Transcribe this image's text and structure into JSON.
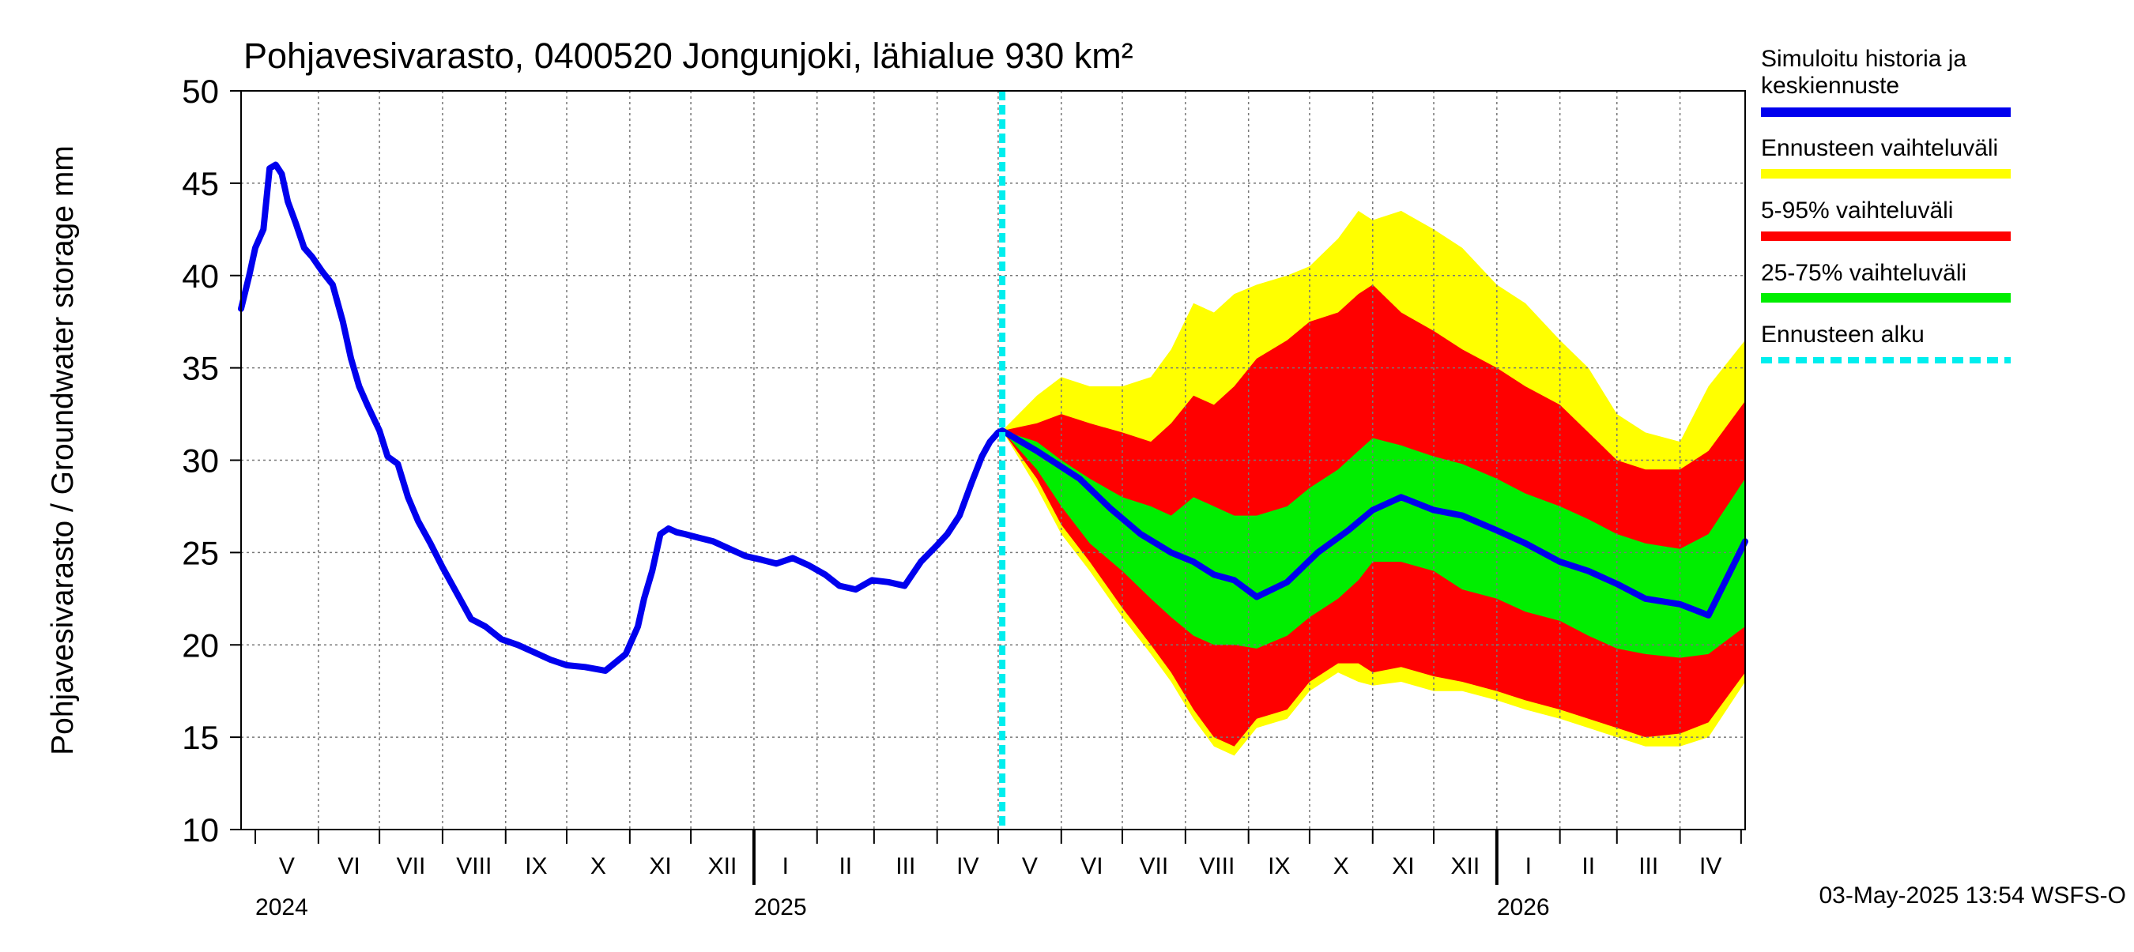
{
  "chart_data": {
    "type": "area",
    "title": "Pohjavesivarasto, 0400520 Jongunjoki, lähialue 930 km²",
    "ylabel": "Pohjavesivarasto / Groundwater storage   mm",
    "ylim": [
      10,
      50
    ],
    "yticks": [
      10,
      15,
      20,
      25,
      30,
      35,
      40,
      45,
      50
    ],
    "xlim": [
      "2024-04-24",
      "2026-05-03"
    ],
    "forecast_start": "2025-05-03",
    "grid": true,
    "legend_position": "right",
    "months": [
      {
        "label": "V",
        "start": "2024-05-01"
      },
      {
        "label": "VI",
        "start": "2024-06-01"
      },
      {
        "label": "VII",
        "start": "2024-07-01"
      },
      {
        "label": "VIII",
        "start": "2024-08-01"
      },
      {
        "label": "IX",
        "start": "2024-09-01"
      },
      {
        "label": "X",
        "start": "2024-10-01"
      },
      {
        "label": "XI",
        "start": "2024-11-01"
      },
      {
        "label": "XII",
        "start": "2024-12-01"
      },
      {
        "label": "I",
        "start": "2025-01-01"
      },
      {
        "label": "II",
        "start": "2025-02-01"
      },
      {
        "label": "III",
        "start": "2025-03-01"
      },
      {
        "label": "IV",
        "start": "2025-04-01"
      },
      {
        "label": "V",
        "start": "2025-05-01"
      },
      {
        "label": "VI",
        "start": "2025-06-01"
      },
      {
        "label": "VII",
        "start": "2025-07-01"
      },
      {
        "label": "VIII",
        "start": "2025-08-01"
      },
      {
        "label": "IX",
        "start": "2025-09-01"
      },
      {
        "label": "X",
        "start": "2025-10-01"
      },
      {
        "label": "XI",
        "start": "2025-11-01"
      },
      {
        "label": "XII",
        "start": "2025-12-01"
      },
      {
        "label": "I",
        "start": "2026-01-01"
      },
      {
        "label": "II",
        "start": "2026-02-01"
      },
      {
        "label": "III",
        "start": "2026-03-01"
      },
      {
        "label": "IV",
        "start": "2026-04-01"
      }
    ],
    "month_ends": "2026-05-01",
    "years": [
      {
        "label": "2024",
        "start": "2024-05-01"
      },
      {
        "label": "2025",
        "start": "2025-01-01"
      },
      {
        "label": "2026",
        "start": "2026-01-01"
      }
    ],
    "series": [
      {
        "name": "Simuloitu historia ja keskiennuste",
        "color": "#0000ee",
        "x": [
          "2024-04-24",
          "2024-04-28",
          "2024-05-01",
          "2024-05-05",
          "2024-05-08",
          "2024-05-11",
          "2024-05-14",
          "2024-05-17",
          "2024-05-21",
          "2024-05-25",
          "2024-05-29",
          "2024-06-03",
          "2024-06-08",
          "2024-06-13",
          "2024-06-17",
          "2024-06-21",
          "2024-06-25",
          "2024-07-01",
          "2024-07-05",
          "2024-07-10",
          "2024-07-15",
          "2024-07-20",
          "2024-07-26",
          "2024-08-01",
          "2024-08-08",
          "2024-08-15",
          "2024-08-22",
          "2024-08-30",
          "2024-09-07",
          "2024-09-15",
          "2024-09-23",
          "2024-10-01",
          "2024-10-10",
          "2024-10-20",
          "2024-10-30",
          "2024-11-05",
          "2024-11-08",
          "2024-11-12",
          "2024-11-16",
          "2024-11-20",
          "2024-11-24",
          "2024-11-28",
          "2024-12-05",
          "2024-12-12",
          "2024-12-20",
          "2024-12-28",
          "2025-01-05",
          "2025-01-12",
          "2025-01-20",
          "2025-01-28",
          "2025-02-05",
          "2025-02-12",
          "2025-02-20",
          "2025-02-28",
          "2025-03-08",
          "2025-03-16",
          "2025-03-24",
          "2025-04-01",
          "2025-04-06",
          "2025-04-12",
          "2025-04-18",
          "2025-04-23",
          "2025-04-27",
          "2025-05-01",
          "2025-05-03",
          "2025-05-20",
          "2025-06-10",
          "2025-06-25",
          "2025-07-10",
          "2025-07-25",
          "2025-08-05",
          "2025-08-15",
          "2025-08-25",
          "2025-09-05",
          "2025-09-20",
          "2025-10-05",
          "2025-10-20",
          "2025-11-01",
          "2025-11-15",
          "2025-12-01",
          "2025-12-15",
          "2026-01-01",
          "2026-01-15",
          "2026-02-01",
          "2026-02-15",
          "2026-03-01",
          "2026-03-15",
          "2026-04-01",
          "2026-04-15",
          "2026-05-03"
        ],
        "y": [
          38.2,
          40.0,
          41.5,
          42.5,
          45.8,
          46.0,
          45.5,
          44.0,
          42.8,
          41.5,
          41.0,
          40.2,
          39.5,
          37.5,
          35.5,
          34.0,
          33.0,
          31.6,
          30.2,
          29.8,
          28.0,
          26.7,
          25.5,
          24.2,
          22.8,
          21.4,
          21.0,
          20.3,
          20.0,
          19.6,
          19.2,
          18.9,
          18.8,
          18.6,
          19.5,
          21.0,
          22.5,
          24.0,
          26.0,
          26.3,
          26.1,
          26.0,
          25.8,
          25.6,
          25.2,
          24.8,
          24.6,
          24.4,
          24.7,
          24.3,
          23.8,
          23.2,
          23.0,
          23.5,
          23.4,
          23.2,
          24.5,
          25.4,
          26.0,
          27.0,
          28.8,
          30.2,
          31.0,
          31.5,
          31.6,
          30.5,
          29.0,
          27.4,
          26.0,
          25.0,
          24.5,
          23.8,
          23.5,
          22.6,
          23.4,
          25.0,
          26.2,
          27.3,
          28.0,
          27.3,
          27.0,
          26.2,
          25.5,
          24.5,
          24.0,
          23.3,
          22.5,
          22.2,
          21.6,
          25.6
        ]
      },
      {
        "name": "Ennusteen vaihteluväli",
        "color": "#ffff00",
        "x": [
          "2025-05-03",
          "2025-05-20",
          "2025-06-01",
          "2025-06-15",
          "2025-07-01",
          "2025-07-15",
          "2025-07-25",
          "2025-08-05",
          "2025-08-15",
          "2025-08-25",
          "2025-09-05",
          "2025-09-20",
          "2025-10-01",
          "2025-10-15",
          "2025-10-25",
          "2025-11-01",
          "2025-11-15",
          "2025-12-01",
          "2025-12-15",
          "2026-01-01",
          "2026-01-15",
          "2026-02-01",
          "2026-02-15",
          "2026-03-01",
          "2026-03-15",
          "2026-04-01",
          "2026-04-15",
          "2026-05-03"
        ],
        "lower": [
          31.6,
          28.5,
          26.0,
          24.0,
          21.5,
          19.5,
          18.0,
          16.0,
          14.5,
          14.0,
          15.5,
          16.0,
          17.5,
          18.5,
          18.0,
          17.8,
          18.0,
          17.5,
          17.5,
          17.0,
          16.5,
          16.0,
          15.5,
          15.0,
          14.5,
          14.5,
          15.0,
          18.0
        ],
        "upper": [
          31.6,
          33.5,
          34.5,
          34.0,
          34.0,
          34.5,
          36.0,
          38.5,
          38.0,
          39.0,
          39.5,
          40.0,
          40.5,
          42.0,
          43.5,
          43.0,
          43.5,
          42.5,
          41.5,
          39.5,
          38.5,
          36.5,
          35.0,
          32.5,
          31.5,
          31.0,
          34.0,
          36.5
        ]
      },
      {
        "name": "5-95% vaihteluväli",
        "color": "#ff0000",
        "x": [
          "2025-05-03",
          "2025-05-20",
          "2025-06-01",
          "2025-06-15",
          "2025-07-01",
          "2025-07-15",
          "2025-07-25",
          "2025-08-05",
          "2025-08-15",
          "2025-08-25",
          "2025-09-05",
          "2025-09-20",
          "2025-10-01",
          "2025-10-15",
          "2025-10-25",
          "2025-11-01",
          "2025-11-15",
          "2025-12-01",
          "2025-12-15",
          "2026-01-01",
          "2026-01-15",
          "2026-02-01",
          "2026-02-15",
          "2026-03-01",
          "2026-03-15",
          "2026-04-01",
          "2026-04-15",
          "2026-05-03"
        ],
        "lower": [
          31.6,
          29.0,
          26.5,
          24.5,
          22.0,
          20.0,
          18.5,
          16.5,
          15.0,
          14.5,
          16.0,
          16.5,
          18.0,
          19.0,
          19.0,
          18.5,
          18.8,
          18.3,
          18.0,
          17.5,
          17.0,
          16.5,
          16.0,
          15.5,
          15.0,
          15.2,
          15.8,
          18.5
        ],
        "upper": [
          31.6,
          32.0,
          32.5,
          32.0,
          31.5,
          31.0,
          32.0,
          33.5,
          33.0,
          34.0,
          35.5,
          36.5,
          37.5,
          38.0,
          39.0,
          39.5,
          38.0,
          37.0,
          36.0,
          35.0,
          34.0,
          33.0,
          31.5,
          30.0,
          29.5,
          29.5,
          30.5,
          33.2
        ]
      },
      {
        "name": "25-75% vaihteluväli",
        "color": "#00ee00",
        "x": [
          "2025-05-03",
          "2025-05-20",
          "2025-06-01",
          "2025-06-15",
          "2025-07-01",
          "2025-07-15",
          "2025-07-25",
          "2025-08-05",
          "2025-08-15",
          "2025-08-25",
          "2025-09-05",
          "2025-09-20",
          "2025-10-01",
          "2025-10-15",
          "2025-10-25",
          "2025-11-01",
          "2025-11-15",
          "2025-12-01",
          "2025-12-15",
          "2026-01-01",
          "2026-01-15",
          "2026-02-01",
          "2026-02-15",
          "2026-03-01",
          "2026-03-15",
          "2026-04-01",
          "2026-04-15",
          "2026-05-03"
        ],
        "lower": [
          31.6,
          29.5,
          27.5,
          25.5,
          24.0,
          22.5,
          21.5,
          20.5,
          20.0,
          20.0,
          19.8,
          20.5,
          21.5,
          22.5,
          23.5,
          24.5,
          24.5,
          24.0,
          23.0,
          22.5,
          21.8,
          21.3,
          20.5,
          19.8,
          19.5,
          19.3,
          19.5,
          21.0
        ],
        "upper": [
          31.6,
          31.0,
          30.0,
          29.0,
          28.0,
          27.5,
          27.0,
          28.0,
          27.5,
          27.0,
          27.0,
          27.5,
          28.5,
          29.5,
          30.5,
          31.2,
          30.8,
          30.2,
          29.8,
          29.0,
          28.2,
          27.5,
          26.8,
          26.0,
          25.5,
          25.2,
          26.0,
          29.0
        ]
      }
    ],
    "forecast_line": {
      "name": "Ennusteen alku",
      "color": "#00eeee"
    }
  },
  "legend": [
    {
      "lines": [
        "Simuloitu historia ja",
        "keskiennuste"
      ],
      "color": "#0000ee",
      "style": "solid"
    },
    {
      "lines": [
        "Ennusteen vaihteluväli"
      ],
      "color": "#ffff00",
      "style": "solid"
    },
    {
      "lines": [
        "5-95% vaihteluväli"
      ],
      "color": "#ff0000",
      "style": "solid"
    },
    {
      "lines": [
        "25-75% vaihteluväli"
      ],
      "color": "#00ee00",
      "style": "solid"
    },
    {
      "lines": [
        "Ennusteen alku"
      ],
      "color": "#00eeee",
      "style": "dashed"
    }
  ],
  "footer": "03-May-2025 13:54 WSFS-O"
}
